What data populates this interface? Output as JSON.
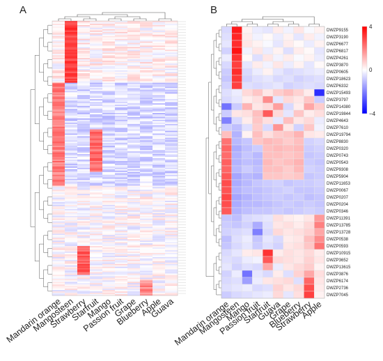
{
  "panels": [
    {
      "letter": "A",
      "columns": [
        "Mandarin orange",
        "Mangosteen",
        "Strawberry",
        "Starfruit",
        "Mango",
        "Passion fruit",
        "Grape",
        "Blueberry",
        "Apple",
        "Guava"
      ]
    },
    {
      "letter": "B",
      "columns": [
        "Mandarin orange",
        "Mangosteen",
        "Mango",
        "Passion fruit",
        "Starfruit",
        "Guava",
        "Grape",
        "Blueberry",
        "Strawberry",
        "Apple"
      ],
      "rows": [
        "DWZP9155",
        "DWZP3190",
        "DWZP6677",
        "DWZP6817",
        "DWZP4261",
        "DWZP3870",
        "DWZP0605",
        "DWZP18623",
        "DWZP6332",
        "DWZP15493",
        "DWZP3797",
        "DWZP14380",
        "DWZP19844",
        "DWZP4643",
        "DWZP7610",
        "DWZP19794",
        "DWZP8830",
        "DWZP0320",
        "DWZP0743",
        "DWZP0543",
        "DWZP9308",
        "DWZP5904",
        "DWZP11653",
        "DWZP0067",
        "DWZP0207",
        "DWZP0204",
        "DWZP0346",
        "DWZP11391",
        "DWZP13785",
        "DWZP13728",
        "DWZP0538",
        "DWZP0593",
        "DWZP10915",
        "DWZP3652",
        "DWZP13615",
        "DWZP3876",
        "DWZP6174",
        "DWZP2736",
        "DWZP7045"
      ]
    }
  ],
  "colorbar": {
    "max_label": "4",
    "mid_label": "0",
    "min_label": "−4",
    "max": 4,
    "min": -4
  },
  "colors": {
    "high": "#ff0000",
    "mid": "#ffffff",
    "low": "#0000ff"
  },
  "chart_data": [
    {
      "type": "heatmap",
      "title": "A",
      "columns": [
        "Mandarin orange",
        "Mangosteen",
        "Strawberry",
        "Starfruit",
        "Mango",
        "Passion fruit",
        "Grape",
        "Blueberry",
        "Apple",
        "Guava"
      ],
      "row_count": 200,
      "row_labels": "illegible",
      "color_scale": {
        "min": -4,
        "mid": 0,
        "max": 4,
        "colors": [
          "#0000ff",
          "#ffffff",
          "#ff0000"
        ]
      },
      "row_clusters": [
        {
          "rows": "1-45",
          "high_in": "Mangosteen",
          "approx_value": 3.2,
          "others_approx": 0.2
        },
        {
          "rows": "46-120",
          "high_in": "Mandarin orange",
          "approx_value": 2.2,
          "others_approx": -0.6
        },
        {
          "rows": "80-110",
          "high_in": "Starfruit",
          "approx_value": 2.5
        },
        {
          "rows": "165-185",
          "high_in": "Strawberry",
          "approx_value": 2.8
        },
        {
          "rows": "190-200",
          "high_in": "Blueberry",
          "approx_value": 2.0
        }
      ]
    },
    {
      "type": "heatmap",
      "title": "B",
      "columns": [
        "Mandarin orange",
        "Mangosteen",
        "Mango",
        "Passion fruit",
        "Starfruit",
        "Guava",
        "Grape",
        "Blueberry",
        "Strawberry",
        "Apple"
      ],
      "rows": [
        "DWZP9155",
        "DWZP3190",
        "DWZP6677",
        "DWZP6817",
        "DWZP4261",
        "DWZP3870",
        "DWZP0605",
        "DWZP18623",
        "DWZP6332",
        "DWZP15493",
        "DWZP3797",
        "DWZP14380",
        "DWZP19844",
        "DWZP4643",
        "DWZP7610",
        "DWZP19794",
        "DWZP8830",
        "DWZP0320",
        "DWZP0743",
        "DWZP0543",
        "DWZP9308",
        "DWZP5904",
        "DWZP11653",
        "DWZP0067",
        "DWZP0207",
        "DWZP0204",
        "DWZP0346",
        "DWZP11391",
        "DWZP13785",
        "DWZP13728",
        "DWZP0538",
        "DWZP0593",
        "DWZP10915",
        "DWZP3652",
        "DWZP13615",
        "DWZP3876",
        "DWZP6174",
        "DWZP2736",
        "DWZP7045"
      ],
      "color_scale": {
        "min": -4,
        "mid": 0,
        "max": 4,
        "colors": [
          "#0000ff",
          "#ffffff",
          "#ff0000"
        ]
      },
      "values": [
        [
          -0.6,
          3.6,
          0.2,
          -0.3,
          -0.4,
          0.3,
          -0.2,
          0.4,
          -0.1,
          0.2
        ],
        [
          -0.5,
          3.4,
          0.3,
          -0.2,
          0.1,
          -0.3,
          0.2,
          -0.4,
          0.3,
          -0.2
        ],
        [
          -0.4,
          3.3,
          0.4,
          0.2,
          -0.1,
          -0.4,
          0.3,
          0.1,
          -0.3,
          0.2
        ],
        [
          -0.7,
          3.7,
          -0.2,
          0.4,
          -0.3,
          0.2,
          -0.5,
          0.3,
          0.1,
          -0.4
        ],
        [
          -0.3,
          3.2,
          0.1,
          -0.5,
          0.4,
          -0.2,
          0.3,
          -0.1,
          0.2,
          -0.3
        ],
        [
          -0.6,
          3.0,
          -0.4,
          0.3,
          -0.2,
          0.4,
          -0.3,
          0.2,
          -0.4,
          0.1
        ],
        [
          -0.8,
          3.3,
          -0.6,
          -0.3,
          0.2,
          -0.4,
          -0.6,
          -0.5,
          -0.4,
          -0.3
        ],
        [
          -0.9,
          3.1,
          -0.7,
          -0.5,
          -0.4,
          -0.6,
          -0.5,
          -0.7,
          -0.6,
          -0.5
        ],
        [
          -0.7,
          3.0,
          -0.5,
          -0.6,
          -0.5,
          -0.4,
          -0.7,
          -0.6,
          -0.5,
          -0.6
        ],
        [
          -0.5,
          -0.3,
          0.6,
          0.9,
          0.4,
          0.8,
          1.0,
          0.7,
          0.3,
          -3.3
        ],
        [
          -0.6,
          -0.4,
          0.3,
          0.5,
          1.8,
          -0.4,
          0.6,
          0.4,
          0.9,
          -0.8
        ],
        [
          -2.2,
          -0.8,
          1.2,
          0.4,
          0.6,
          1.5,
          -0.6,
          0.3,
          1.4,
          0.8
        ],
        [
          -0.8,
          0.4,
          0.5,
          1.0,
          2.6,
          0.6,
          -0.4,
          0.9,
          0.3,
          0.5
        ],
        [
          -2.0,
          -0.6,
          0.3,
          0.9,
          0.5,
          -0.4,
          1.0,
          0.4,
          0.6,
          -0.3
        ],
        [
          -0.8,
          -1.0,
          -0.5,
          0.8,
          -0.6,
          1.7,
          0.4,
          -0.7,
          0.9,
          -0.2
        ],
        [
          1.0,
          -1.2,
          0.2,
          1.0,
          0.5,
          0.8,
          0.9,
          1.2,
          0.4,
          0.3
        ],
        [
          2.2,
          -1.1,
          -0.9,
          0.9,
          1.1,
          1.0,
          0.8,
          1.0,
          -0.7,
          -0.6
        ],
        [
          2.4,
          -1.3,
          -1.0,
          -0.8,
          1.0,
          1.1,
          1.0,
          1.1,
          -0.8,
          -0.7
        ],
        [
          2.3,
          -1.2,
          -0.9,
          -1.1,
          1.0,
          1.0,
          0.9,
          1.0,
          -0.9,
          -0.8
        ],
        [
          2.5,
          -1.2,
          -1.0,
          -1.1,
          1.1,
          0.9,
          1.0,
          1.2,
          -0.8,
          -0.9
        ],
        [
          2.4,
          -1.1,
          -0.8,
          -1.0,
          1.0,
          1.0,
          0.8,
          1.1,
          -0.7,
          -0.8
        ],
        [
          2.6,
          -1.4,
          -1.1,
          -1.2,
          0.9,
          0.9,
          0.8,
          0.9,
          -0.9,
          -0.8
        ],
        [
          2.8,
          -1.3,
          -1.1,
          -0.9,
          -0.8,
          -0.7,
          -0.9,
          -0.8,
          -0.8,
          -0.7
        ],
        [
          2.7,
          -1.2,
          -1.0,
          -1.0,
          -0.9,
          -0.8,
          -0.7,
          -0.9,
          -0.9,
          -0.8
        ],
        [
          2.9,
          -1.4,
          -1.2,
          -1.0,
          -0.9,
          -0.8,
          -0.9,
          -0.8,
          -1.0,
          -0.9
        ],
        [
          2.8,
          -1.3,
          -1.1,
          -1.1,
          -1.0,
          -0.9,
          -0.8,
          -0.9,
          -0.8,
          -0.9
        ],
        [
          2.6,
          -1.2,
          -1.0,
          -0.9,
          -0.9,
          -0.8,
          -0.9,
          -0.8,
          -0.7,
          -0.8
        ],
        [
          -0.9,
          -1.0,
          -0.6,
          -0.5,
          -0.4,
          0.5,
          0.3,
          0.2,
          0.4,
          1.6
        ],
        [
          -0.8,
          -0.9,
          -0.7,
          -1.3,
          -0.5,
          0.4,
          0.5,
          0.3,
          0.6,
          2.0
        ],
        [
          -0.7,
          -0.6,
          -0.5,
          -2.0,
          -0.6,
          0.6,
          0.4,
          0.5,
          0.7,
          1.4
        ],
        [
          -1.0,
          -0.5,
          -0.3,
          -0.9,
          -0.4,
          -0.6,
          0.3,
          0.4,
          1.0,
          1.8
        ],
        [
          -0.9,
          -0.6,
          -0.4,
          -0.8,
          -0.5,
          -0.7,
          0.4,
          0.5,
          0.9,
          2.2
        ],
        [
          -0.6,
          -0.4,
          0.3,
          0.4,
          3.2,
          0.3,
          0.5,
          0.4,
          0.6,
          0.3
        ],
        [
          -0.5,
          -0.6,
          -0.3,
          -0.2,
          2.6,
          0.6,
          0.5,
          0.4,
          0.7,
          0.4
        ],
        [
          -0.4,
          -0.7,
          -0.5,
          -0.6,
          1.4,
          -0.3,
          0.4,
          0.6,
          0.8,
          0.2
        ],
        [
          -0.7,
          -0.3,
          -2.2,
          -0.4,
          -0.6,
          0.3,
          -0.5,
          0.7,
          1.4,
          0.5
        ],
        [
          -0.6,
          -0.5,
          -1.5,
          -0.3,
          0.4,
          0.5,
          0.6,
          -0.5,
          2.4,
          0.4
        ],
        [
          -0.5,
          -0.4,
          -0.3,
          -0.6,
          -0.5,
          0.7,
          0.4,
          0.6,
          2.8,
          0.3
        ],
        [
          -0.8,
          -0.6,
          -0.5,
          -0.4,
          -0.3,
          0.6,
          -0.4,
          0.5,
          3.0,
          0.2
        ]
      ]
    }
  ]
}
